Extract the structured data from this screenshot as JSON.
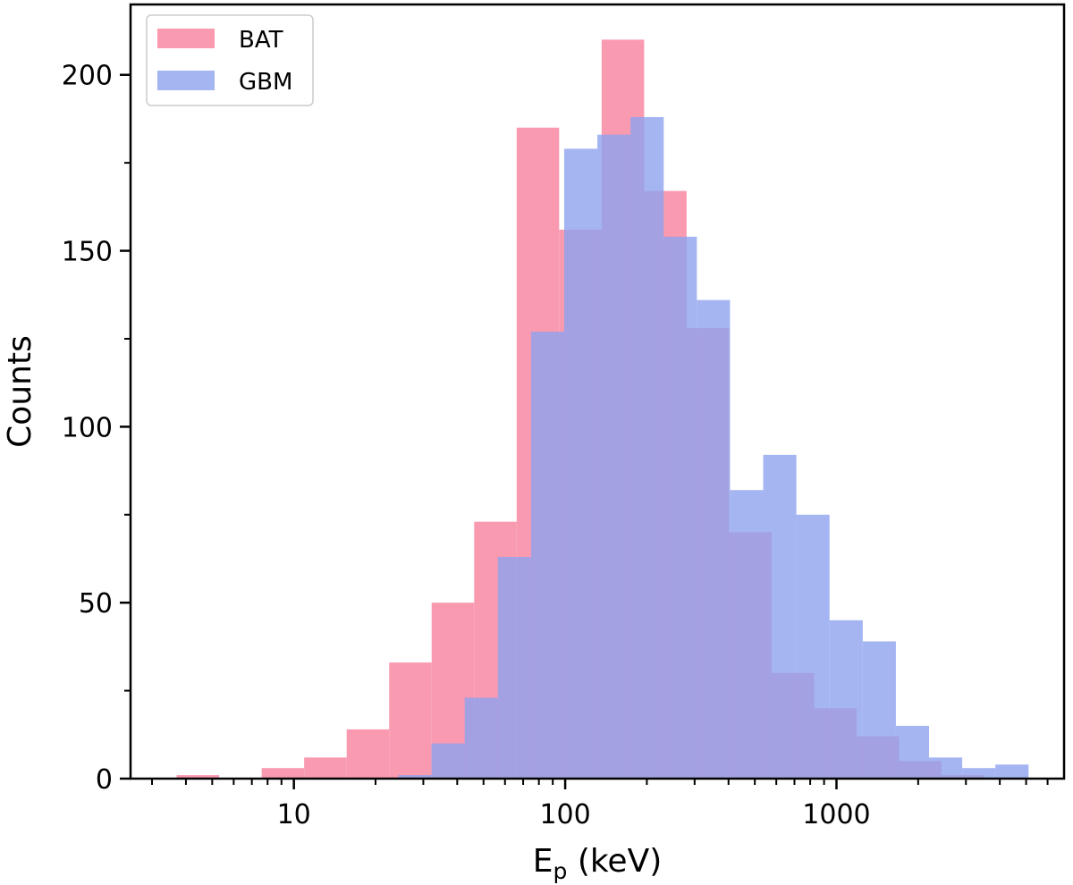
{
  "chart_data": {
    "type": "histogram",
    "xlabel": "E",
    "xlabel_sub": "p",
    "xlabel_unit": " (keV)",
    "ylabel": "Counts",
    "xscale": "log",
    "xlim": [
      2.5,
      6900
    ],
    "ylim": [
      0,
      220
    ],
    "x_ticks": [
      10,
      100,
      1000
    ],
    "x_tick_labels": [
      "10",
      "100",
      "1000"
    ],
    "y_ticks": [
      0,
      50,
      100,
      150,
      200
    ],
    "y_tick_labels": [
      "0",
      "50",
      "100",
      "150",
      "200"
    ],
    "grid": false,
    "legend_position": "top-left",
    "series": [
      {
        "name": "BAT",
        "color": "#fa9ab1",
        "bin_edges_log10_range": [
          0.568,
          3.544
        ],
        "counts": [
          1,
          0,
          3,
          6,
          14,
          33,
          50,
          73,
          185,
          156,
          210,
          167,
          128,
          70,
          30,
          20,
          12,
          5,
          1
        ]
      },
      {
        "name": "GBM",
        "color": "#8da2ef",
        "opacity": 0.8,
        "bin_edges_log10_range": [
          1.385,
          3.708
        ],
        "counts": [
          1,
          10,
          23,
          63,
          127,
          179,
          183,
          188,
          154,
          136,
          82,
          92,
          75,
          45,
          39,
          15,
          6,
          3,
          4
        ]
      }
    ]
  }
}
